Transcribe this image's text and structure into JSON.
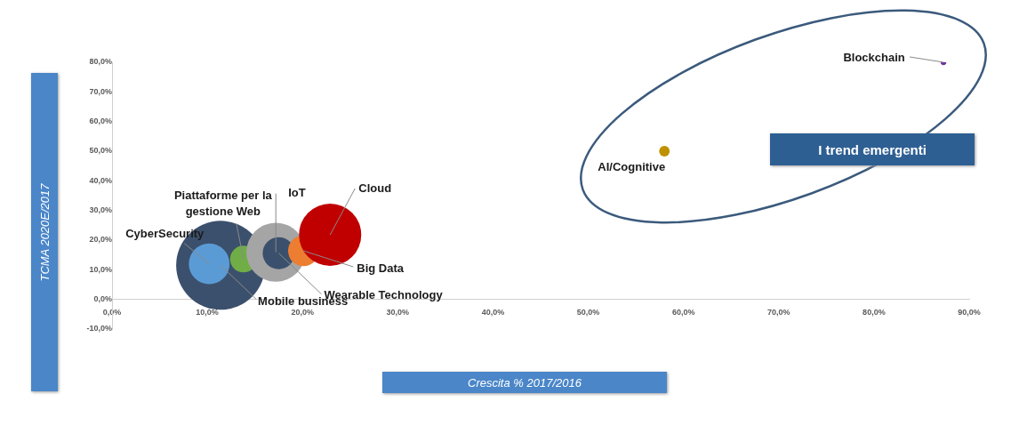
{
  "chart_data": {
    "type": "bubble",
    "xlabel": "Crescita % 2017/2016",
    "ylabel": "TCMA 2020E/2017",
    "annotations": [
      "I trend emergenti"
    ],
    "series": [
      {
        "name": "Mobile business",
        "color": "#3b506c",
        "x": [
          11.4
        ],
        "values": [
          11.5
        ],
        "sizes": [
          1
        ]
      },
      {
        "name": "CyberSecurity",
        "color": "#5b9bd5",
        "x": [
          10.2
        ],
        "values": [
          12
        ],
        "sizes": [
          0.21
        ]
      },
      {
        "name": "Piattaforme per la gestione Web",
        "color": "#70ad47",
        "x": [
          13.8
        ],
        "values": [
          13.6
        ],
        "sizes": [
          0.09
        ]
      },
      {
        "name": "IoT",
        "color": "#a5a5a5",
        "x": [
          17.2
        ],
        "values": [
          15.9
        ],
        "sizes": [
          0.44
        ]
      },
      {
        "name": "Wearable Technology",
        "color": "#3b506c",
        "x": [
          17.5
        ],
        "values": [
          15.6
        ],
        "sizes": [
          0.13
        ]
      },
      {
        "name": "Big Data",
        "color": "#ed7d31",
        "x": [
          20.1
        ],
        "values": [
          16.4
        ],
        "sizes": [
          0.12
        ]
      },
      {
        "name": "Cloud",
        "color": "#c00000",
        "x": [
          22.9
        ],
        "values": [
          21.8
        ],
        "sizes": [
          0.49
        ]
      },
      {
        "name": "AI/Cognitive",
        "color": "#bf9000",
        "x": [
          58
        ],
        "values": [
          50
        ],
        "sizes": [
          0.014
        ]
      },
      {
        "name": "Blockchain",
        "color": "#7030a0",
        "x": [
          87.3
        ],
        "values": [
          80
        ],
        "sizes": [
          0.004
        ]
      }
    ],
    "xlim": [
      0,
      90
    ],
    "ylim": [
      -10,
      80
    ],
    "xticks": [
      {
        "value": 0,
        "label": "0,0%"
      },
      {
        "value": 10,
        "label": "10,0%"
      },
      {
        "value": 20,
        "label": "20,0%"
      },
      {
        "value": 30,
        "label": "30,0%"
      },
      {
        "value": 40,
        "label": "40,0%"
      },
      {
        "value": 50,
        "label": "50,0%"
      },
      {
        "value": 60,
        "label": "60,0%"
      },
      {
        "value": 70,
        "label": "70,0%"
      },
      {
        "value": 80,
        "label": "80,0%"
      },
      {
        "value": 90,
        "label": "90,0%"
      }
    ],
    "yticks": [
      {
        "value": -10,
        "label": "-10,0%"
      },
      {
        "value": 0,
        "label": "0,0%"
      },
      {
        "value": 10,
        "label": "10,0%"
      },
      {
        "value": 20,
        "label": "20,0%"
      },
      {
        "value": 30,
        "label": "30,0%"
      },
      {
        "value": 40,
        "label": "40,0%"
      },
      {
        "value": 50,
        "label": "50,0%"
      },
      {
        "value": 60,
        "label": "60,0%"
      },
      {
        "value": 70,
        "label": "70,0%"
      },
      {
        "value": 80,
        "label": "80,0%"
      }
    ],
    "grid": false,
    "legend": false
  }
}
